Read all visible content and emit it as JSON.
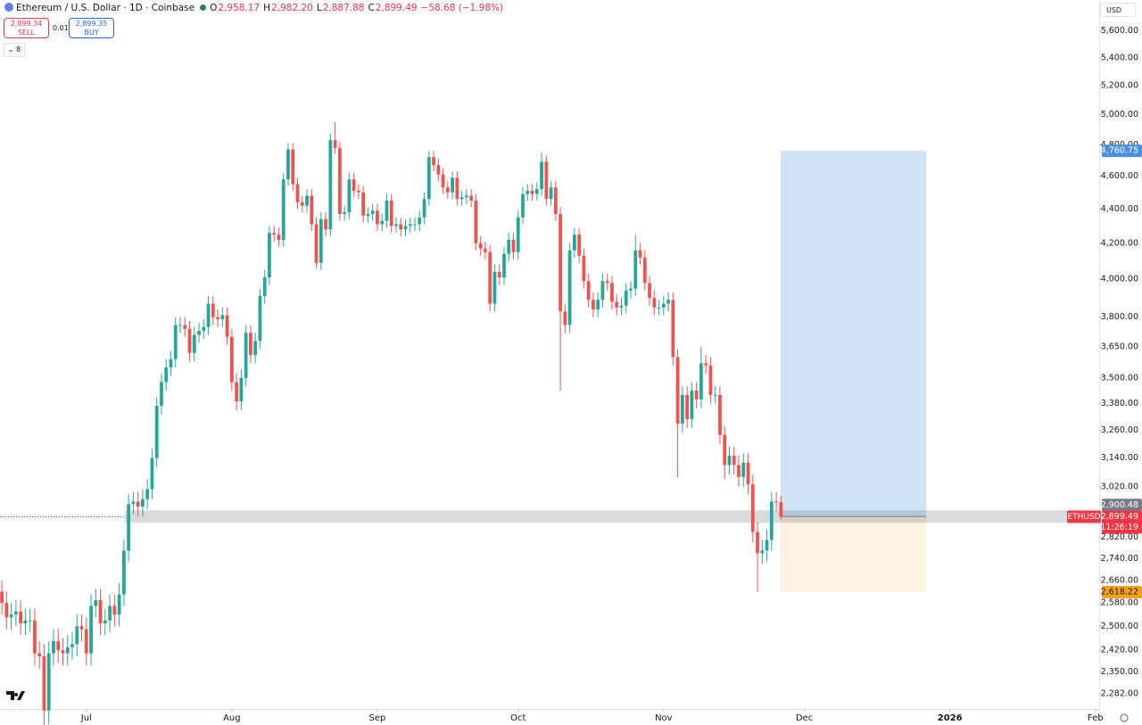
{
  "header": {
    "title": "Ethereum / U.S. Dollar · 1D · Coinbase",
    "o_label": "O",
    "o": "2,958.17",
    "h_label": "H",
    "h": "2,982.20",
    "l_label": "L",
    "l": "2,887.88",
    "c_label": "C",
    "c": "2,899.49",
    "change": "−58.68 (−1.98%)",
    "sell_price": "2,899.34",
    "sell": "SELL",
    "spread": "0.01",
    "buy_price": "2,899.35",
    "buy": "BUY",
    "indicators": "8",
    "currency": "USD"
  },
  "chart_data": {
    "type": "candlestick",
    "symbol": "ETHUSD",
    "countdown": "11:26:19",
    "last_price_label": "2,899.49",
    "up_color": "#26a69a",
    "down_color": "#ef5350",
    "log_scale": true,
    "open": [
      2620,
      2580,
      2530,
      2540,
      2550,
      2510,
      2520,
      2520,
      2410,
      2400,
      2230,
      2410,
      2450,
      2420,
      2410,
      2430,
      2440,
      2500,
      2490,
      2410,
      2570,
      2590,
      2510,
      2520,
      2570,
      2540,
      2610,
      2770,
      2950,
      2960,
      2940,
      2970,
      3010,
      3140,
      3370,
      3480,
      3550,
      3590,
      3760,
      3760,
      3740,
      3620,
      3710,
      3730,
      3750,
      3870,
      3800,
      3790,
      3810,
      3700,
      3480,
      3390,
      3500,
      3720,
      3610,
      3680,
      3910,
      4010,
      4260,
      4250,
      4220,
      4580,
      4770,
      4550,
      4440,
      4420,
      4480,
      4310,
      4090,
      4340,
      4280,
      4830,
      4780,
      4370,
      4380,
      4580,
      4510,
      4500,
      4360,
      4370,
      4390,
      4310,
      4330,
      4450,
      4300,
      4310,
      4280,
      4300,
      4310,
      4310,
      4350,
      4460,
      4720,
      4670,
      4610,
      4530,
      4500,
      4590,
      4460,
      4470,
      4480,
      4450,
      4200,
      4170,
      4150,
      3870,
      4040,
      4010,
      4140,
      4220,
      4150,
      4350,
      4490,
      4510,
      4490,
      4520,
      4690,
      4460,
      4530,
      4370,
      3830,
      3760,
      4160,
      4250,
      4130,
      3990,
      3890,
      3840,
      3890,
      3990,
      3980,
      3880,
      3850,
      3860,
      3940,
      3950,
      4160,
      4120,
      3980,
      3900,
      3850,
      3850,
      3870,
      3890,
      3600,
      3290,
      3420,
      3310,
      3440,
      3400,
      3570,
      3560,
      3420,
      3420,
      3240,
      3110,
      3150,
      3110,
      3060,
      3120,
      3030,
      2840,
      2760,
      2770,
      2810,
      2960,
      2958.17
    ],
    "high": [
      2660,
      2620,
      2580,
      2590,
      2590,
      2560,
      2560,
      2560,
      2450,
      2440,
      2450,
      2490,
      2490,
      2460,
      2470,
      2480,
      2540,
      2540,
      2530,
      2610,
      2630,
      2630,
      2560,
      2610,
      2610,
      2650,
      2810,
      2990,
      3000,
      3000,
      3010,
      3050,
      3180,
      3410,
      3520,
      3590,
      3630,
      3800,
      3800,
      3800,
      3780,
      3750,
      3770,
      3790,
      3910,
      3910,
      3840,
      3850,
      3850,
      3740,
      3520,
      3540,
      3760,
      3760,
      3720,
      3950,
      4050,
      4300,
      4300,
      4290,
      4620,
      4810,
      4810,
      4590,
      4480,
      4520,
      4520,
      4350,
      4380,
      4380,
      4870,
      4950,
      4820,
      4420,
      4620,
      4620,
      4550,
      4540,
      4410,
      4430,
      4430,
      4370,
      4490,
      4490,
      4350,
      4350,
      4340,
      4350,
      4350,
      4390,
      4500,
      4760,
      4760,
      4710,
      4650,
      4570,
      4630,
      4630,
      4510,
      4520,
      4520,
      4490,
      4240,
      4210,
      4190,
      4080,
      4080,
      4180,
      4260,
      4260,
      4390,
      4530,
      4550,
      4550,
      4560,
      4750,
      4730,
      4570,
      4570,
      4410,
      3870,
      4200,
      4290,
      4290,
      4170,
      4030,
      3930,
      3930,
      4030,
      4030,
      4020,
      3920,
      3900,
      3980,
      3990,
      4250,
      4200,
      4160,
      4020,
      3940,
      3890,
      3910,
      3930,
      3930,
      3640,
      3460,
      3460,
      3480,
      3480,
      3650,
      3610,
      3600,
      3460,
      3460,
      3280,
      3190,
      3190,
      3150,
      3160,
      3160,
      3070,
      2880,
      2810,
      2850,
      3000,
      3000,
      2982.2
    ],
    "low": [
      2540,
      2490,
      2490,
      2500,
      2470,
      2470,
      2480,
      2370,
      2360,
      2110,
      2190,
      2370,
      2380,
      2370,
      2370,
      2390,
      2400,
      2450,
      2370,
      2370,
      2530,
      2470,
      2470,
      2480,
      2500,
      2500,
      2570,
      2730,
      2910,
      2900,
      2900,
      2930,
      2970,
      3100,
      3330,
      3440,
      3510,
      3550,
      3720,
      3700,
      3580,
      3580,
      3670,
      3690,
      3710,
      3760,
      3750,
      3750,
      3660,
      3440,
      3350,
      3350,
      3460,
      3570,
      3570,
      3640,
      3870,
      3970,
      4210,
      4180,
      4180,
      4540,
      4510,
      4400,
      4380,
      4380,
      4270,
      4060,
      4050,
      4240,
      4240,
      4740,
      4330,
      4330,
      4340,
      4470,
      4460,
      4320,
      4320,
      4330,
      4270,
      4270,
      4290,
      4260,
      4260,
      4240,
      4240,
      4260,
      4270,
      4270,
      4310,
      4420,
      4630,
      4570,
      4490,
      4460,
      4460,
      4420,
      4420,
      4430,
      4410,
      4160,
      4130,
      4110,
      3830,
      3830,
      3970,
      3970,
      4100,
      4110,
      4110,
      4310,
      4450,
      4450,
      4450,
      4480,
      4420,
      4420,
      4330,
      3440,
      3720,
      3720,
      4120,
      4090,
      3950,
      3850,
      3800,
      3800,
      3850,
      3940,
      3840,
      3810,
      3810,
      3820,
      3900,
      3910,
      4080,
      3940,
      3860,
      3810,
      3810,
      3810,
      3830,
      3560,
      3060,
      3250,
      3270,
      3270,
      3360,
      3360,
      3520,
      3380,
      3380,
      3200,
      3050,
      3070,
      3070,
      3020,
      3020,
      2990,
      2800,
      2620,
      2720,
      2730,
      2770,
      2920,
      2887.88
    ],
    "close": [
      2580,
      2530,
      2540,
      2550,
      2510,
      2520,
      2520,
      2410,
      2400,
      2230,
      2410,
      2450,
      2420,
      2410,
      2430,
      2440,
      2500,
      2490,
      2410,
      2570,
      2590,
      2510,
      2520,
      2570,
      2540,
      2610,
      2770,
      2950,
      2960,
      2940,
      2970,
      3010,
      3140,
      3370,
      3480,
      3550,
      3590,
      3760,
      3760,
      3740,
      3620,
      3710,
      3730,
      3750,
      3870,
      3800,
      3790,
      3810,
      3700,
      3480,
      3390,
      3500,
      3720,
      3610,
      3680,
      3910,
      4010,
      4260,
      4250,
      4220,
      4580,
      4770,
      4550,
      4440,
      4420,
      4480,
      4310,
      4090,
      4340,
      4280,
      4830,
      4780,
      4370,
      4380,
      4580,
      4510,
      4500,
      4360,
      4370,
      4390,
      4310,
      4330,
      4450,
      4300,
      4310,
      4280,
      4300,
      4310,
      4310,
      4350,
      4460,
      4720,
      4670,
      4610,
      4530,
      4500,
      4590,
      4460,
      4470,
      4480,
      4450,
      4200,
      4170,
      4150,
      3870,
      4040,
      4010,
      4140,
      4220,
      4150,
      4350,
      4490,
      4510,
      4490,
      4520,
      4690,
      4460,
      4530,
      4370,
      3830,
      3760,
      4160,
      4250,
      4130,
      3990,
      3890,
      3840,
      3890,
      3990,
      3980,
      3880,
      3850,
      3860,
      3940,
      3950,
      4160,
      4120,
      3980,
      3900,
      3850,
      3850,
      3870,
      3890,
      3600,
      3290,
      3420,
      3310,
      3440,
      3400,
      3570,
      3560,
      3420,
      3420,
      3240,
      3110,
      3150,
      3110,
      3060,
      3120,
      3030,
      2840,
      2760,
      2770,
      2810,
      2960,
      2958.17,
      2899.49
    ],
    "xlim": [
      -0.4,
      233.8
    ],
    "xticks": [
      {
        "value": 18,
        "label": "Jul"
      },
      {
        "value": 49,
        "label": "Aug"
      },
      {
        "value": 80,
        "label": "Sep"
      },
      {
        "value": 110,
        "label": "Oct"
      },
      {
        "value": 141,
        "label": "Nov"
      },
      {
        "value": 171,
        "label": "Dec"
      },
      {
        "value": 202,
        "label": "2026"
      },
      {
        "value": 233,
        "label": "Feb"
      }
    ],
    "ylim": [
      2235,
      5840
    ],
    "yticks": [
      {
        "value": 5600,
        "label": "5,600.00"
      },
      {
        "value": 5400,
        "label": "5,400.00"
      },
      {
        "value": 5200,
        "label": "5,200.00"
      },
      {
        "value": 5000,
        "label": "5,000.00"
      },
      {
        "value": 4800,
        "label": "4,800.00"
      },
      {
        "value": 4600,
        "label": "4,600.00"
      },
      {
        "value": 4400,
        "label": "4,400.00"
      },
      {
        "value": 4200,
        "label": "4,200.00"
      },
      {
        "value": 4000,
        "label": "4,000.00"
      },
      {
        "value": 3800,
        "label": "3,800.00"
      },
      {
        "value": 3650,
        "label": "3,650.00"
      },
      {
        "value": 3500,
        "label": "3,500.00"
      },
      {
        "value": 3380,
        "label": "3,380.00"
      },
      {
        "value": 3260,
        "label": "3,260.00"
      },
      {
        "value": 3140,
        "label": "3,140.00"
      },
      {
        "value": 3020,
        "label": "3,020.00"
      },
      {
        "value": 2820,
        "label": "2,820.00"
      },
      {
        "value": 2740,
        "label": "2,740.00"
      },
      {
        "value": 2660,
        "label": "2,660.00"
      },
      {
        "value": 2580,
        "label": "2,580.00"
      },
      {
        "value": 2500,
        "label": "2,500.00"
      },
      {
        "value": 2420,
        "label": "2,420.00"
      },
      {
        "value": 2350,
        "label": "2,350.00"
      },
      {
        "value": 2282,
        "label": "2,282.00"
      }
    ],
    "position": {
      "target": {
        "value": 4760.75,
        "label": "4,760.75"
      },
      "entry": {
        "value": 2900.48,
        "label": "2,900.48"
      },
      "stop": {
        "value": 2618.22,
        "label": "2,618.22"
      }
    }
  }
}
